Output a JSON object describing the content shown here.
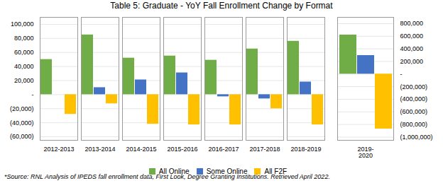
{
  "chart_data": [
    {
      "type": "bar",
      "title": "Table 5: Graduate - YoY Fall Enrollment Change by Format",
      "annotations": [
        "*Source: RNL Analysis of IPEDS fall enrollment data, First Look, Degree Granting Institutions. Retrieved April 2022."
      ],
      "categories": [
        "2012-2013",
        "2013-2014",
        "2014-2015",
        "2015-2016",
        "2016-2017",
        "2017-2018",
        "2018-2019"
      ],
      "series": [
        {
          "name": "All Online",
          "color": "#70AD47",
          "values": [
            50000,
            85000,
            52000,
            55000,
            49000,
            65000,
            76000
          ]
        },
        {
          "name": "Some Online",
          "color": "#4472C4",
          "values": [
            0,
            10000,
            21000,
            31000,
            -3000,
            -6000,
            18000
          ]
        },
        {
          "name": "All F2F",
          "color": "#FFC000",
          "values": [
            -28000,
            -13000,
            -42000,
            -43000,
            -43000,
            -20000,
            -43000
          ]
        }
      ],
      "ylim": [
        -65000,
        110000
      ],
      "yticks": [
        {
          "value": -60000,
          "label": "(60,000)"
        },
        {
          "value": -40000,
          "label": "(40,000)"
        },
        {
          "value": -20000,
          "label": "(20,000)"
        },
        {
          "value": 0,
          "label": "-"
        },
        {
          "value": 20000,
          "label": "20,000"
        },
        {
          "value": 40000,
          "label": "40,000"
        },
        {
          "value": 60000,
          "label": "60,000"
        },
        {
          "value": 80000,
          "label": "80,000"
        },
        {
          "value": 100000,
          "label": "100,000"
        }
      ],
      "grid": true,
      "legend": "bottom"
    },
    {
      "type": "bar",
      "categories": [
        "2019-\n2020"
      ],
      "series": [
        {
          "name": "All Online",
          "color": "#70AD47",
          "values": [
            620000
          ]
        },
        {
          "name": "Some Online",
          "color": "#4472C4",
          "values": [
            295000
          ]
        },
        {
          "name": "All F2F",
          "color": "#FFC000",
          "values": [
            -870000
          ]
        }
      ],
      "ylim": [
        -1050000,
        900000
      ],
      "yticks": [
        {
          "value": -1000000,
          "label": "(1,000,000)"
        },
        {
          "value": -800000,
          "label": "(800,000)"
        },
        {
          "value": -600000,
          "label": "(600,000)"
        },
        {
          "value": -400000,
          "label": "(400,000)"
        },
        {
          "value": -200000,
          "label": "(200,000)"
        },
        {
          "value": 0,
          "label": "-"
        },
        {
          "value": 200000,
          "label": "200,000"
        },
        {
          "value": 400000,
          "label": "400,000"
        },
        {
          "value": 600000,
          "label": "600,000"
        },
        {
          "value": 800000,
          "label": "800,000"
        }
      ],
      "grid": true
    }
  ]
}
